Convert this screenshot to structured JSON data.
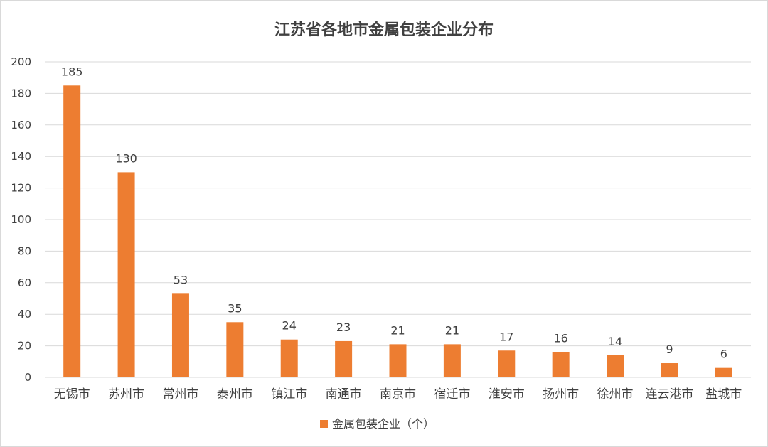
{
  "chart_data": {
    "type": "bar",
    "title": "江苏省各地市金属包装企业分布",
    "categories": [
      "无锡市",
      "苏州市",
      "常州市",
      "泰州市",
      "镇江市",
      "南通市",
      "南京市",
      "宿迁市",
      "淮安市",
      "扬州市",
      "徐州市",
      "连云港市",
      "盐城市"
    ],
    "series": [
      {
        "name": "金属包装企业（个）",
        "values": [
          185,
          130,
          53,
          35,
          24,
          23,
          21,
          21,
          17,
          16,
          14,
          9,
          6
        ]
      }
    ],
    "ylim": [
      0,
      200
    ],
    "yticks": [
      0,
      20,
      40,
      60,
      80,
      100,
      120,
      140,
      160,
      180,
      200
    ],
    "xlabel": "",
    "ylabel": "",
    "grid": true,
    "legend_position": "bottom",
    "bar_color": "#ED7D31"
  }
}
